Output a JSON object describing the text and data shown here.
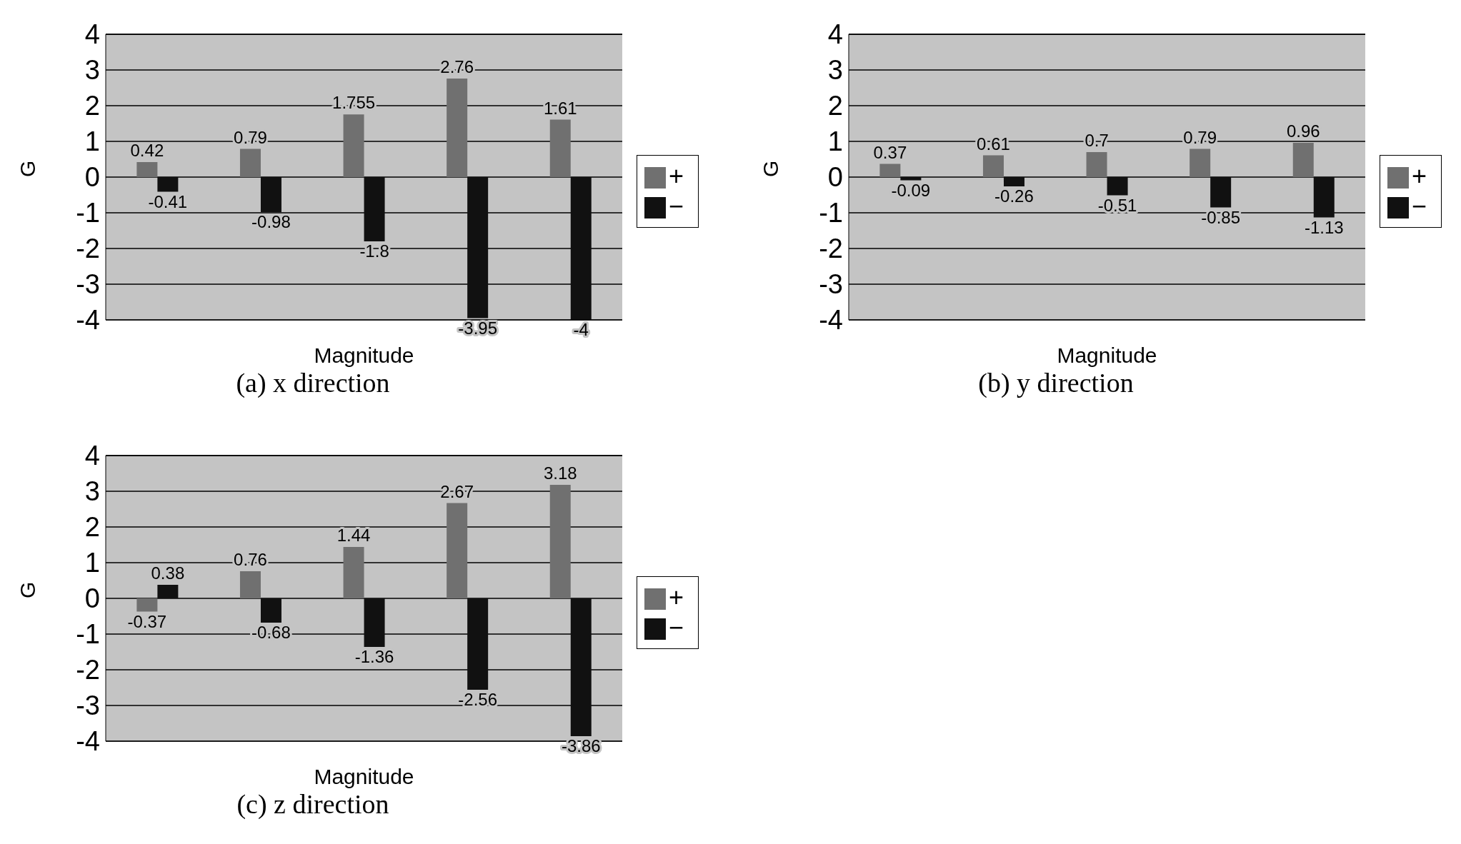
{
  "chart_data": [
    {
      "type": "bar",
      "title": "(a) x direction",
      "xlabel": "Magnitude",
      "ylabel": "G",
      "categories": [
        null,
        null,
        null,
        null,
        null
      ],
      "series": [
        {
          "name": "+",
          "color": "#707070",
          "values": [
            0.42,
            0.79,
            1.755,
            2.76,
            1.61
          ]
        },
        {
          "name": "−",
          "color": "#111111",
          "values": [
            -0.41,
            -0.98,
            -1.8,
            -3.95,
            -4
          ]
        }
      ],
      "ylim": [
        -4,
        4
      ],
      "yticks": [
        -4,
        -3,
        -2,
        -1,
        0,
        1,
        2,
        3,
        4
      ],
      "grid": "y",
      "legend": "right",
      "data_labels": true
    },
    {
      "type": "bar",
      "title": "(b) y direction",
      "xlabel": "Magnitude",
      "ylabel": "G",
      "categories": [
        null,
        null,
        null,
        null,
        null
      ],
      "series": [
        {
          "name": "+",
          "color": "#707070",
          "values": [
            0.37,
            0.61,
            0.7,
            0.79,
            0.96
          ]
        },
        {
          "name": "−",
          "color": "#111111",
          "values": [
            -0.09,
            -0.26,
            -0.51,
            -0.85,
            -1.13
          ]
        }
      ],
      "ylim": [
        -4,
        4
      ],
      "yticks": [
        -4,
        -3,
        -2,
        -1,
        0,
        1,
        2,
        3,
        4
      ],
      "grid": "y",
      "legend": "right",
      "data_labels": true
    },
    {
      "type": "bar",
      "title": "(c) z direction",
      "xlabel": "Magnitude",
      "ylabel": "G",
      "categories": [
        null,
        null,
        null,
        null,
        null
      ],
      "series": [
        {
          "name": "+",
          "color": "#707070",
          "values": [
            -0.37,
            0.76,
            1.44,
            2.67,
            3.18
          ]
        },
        {
          "name": "−",
          "color": "#111111",
          "values": [
            0.38,
            -0.68,
            -1.36,
            -2.56,
            -3.86
          ]
        }
      ],
      "ylim": [
        -4,
        4
      ],
      "yticks": [
        -4,
        -3,
        -2,
        -1,
        0,
        1,
        2,
        3,
        4
      ],
      "grid": "y",
      "legend": "right",
      "data_labels": true
    }
  ]
}
